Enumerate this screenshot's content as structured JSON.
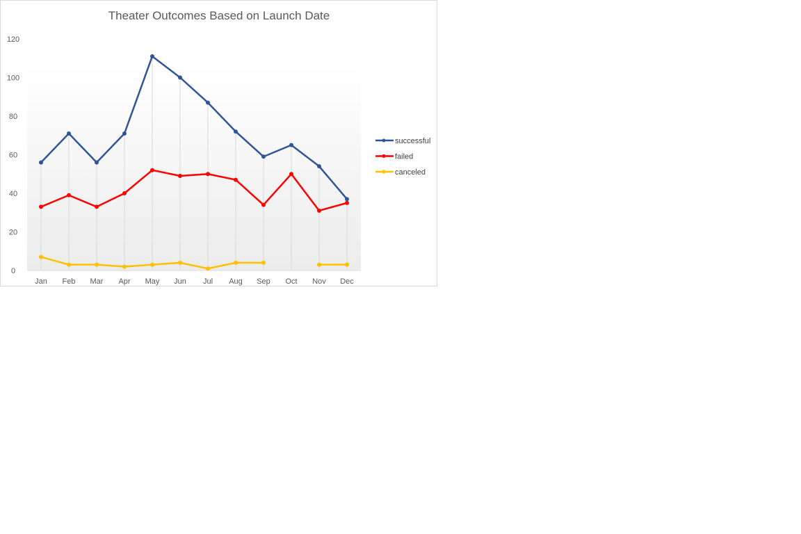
{
  "chart_data": {
    "type": "line",
    "title": "Theater Outcomes Based on Launch Date",
    "xlabel": "",
    "ylabel": "",
    "categories": [
      "Jan",
      "Feb",
      "Mar",
      "Apr",
      "May",
      "Jun",
      "Jul",
      "Aug",
      "Sep",
      "Oct",
      "Nov",
      "Dec"
    ],
    "ylim": [
      0,
      120
    ],
    "yticks": [
      0,
      20,
      40,
      60,
      80,
      100,
      120
    ],
    "grid": "vertical drop lines at each category",
    "legend_position": "right",
    "series": [
      {
        "name": "successful",
        "color": "#2f5597",
        "values": [
          56,
          71,
          56,
          71,
          111,
          100,
          87,
          72,
          59,
          65,
          54,
          37
        ]
      },
      {
        "name": "failed",
        "color": "#ff0000",
        "values": [
          33,
          39,
          33,
          40,
          52,
          49,
          50,
          47,
          34,
          50,
          31,
          35
        ]
      },
      {
        "name": "canceled",
        "color": "#ffc000",
        "values": [
          7,
          3,
          3,
          2,
          3,
          4,
          1,
          4,
          4,
          null,
          3,
          3
        ]
      }
    ]
  }
}
